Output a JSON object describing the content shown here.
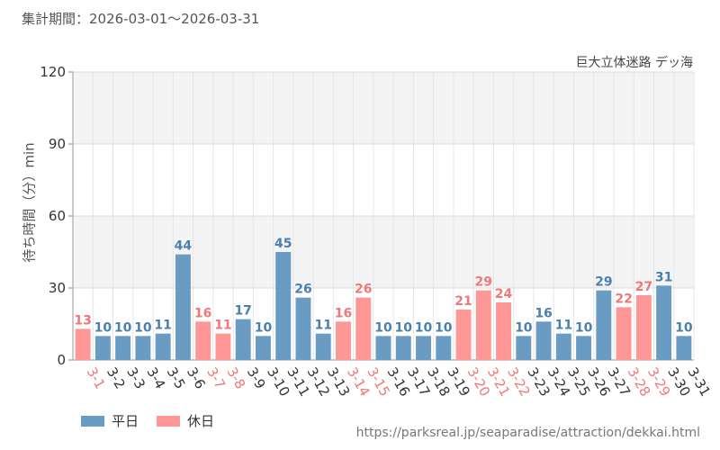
{
  "header": {
    "period_label": "集計期間：2026-03-01～2026-03-31",
    "attraction_name": "巨大立体迷路 デッ海"
  },
  "legend": {
    "weekday_label": "平日",
    "holiday_label": "休日"
  },
  "footer": {
    "source_url": "https://parksreal.jp/seaparadise/attraction/dekkai.html"
  },
  "colors": {
    "weekday": "#6a9bc3",
    "holiday": "#ff9797",
    "weekday_label": "#4a7fb0",
    "holiday_label": "#f07878"
  },
  "chart_data": {
    "type": "bar",
    "title": "",
    "xlabel": "",
    "ylabel": "待ち時間（分）min",
    "ylim": [
      0,
      120
    ],
    "yticks": [
      0,
      30,
      60,
      90,
      120
    ],
    "grid": true,
    "categories": [
      "3-1",
      "3-2",
      "3-3",
      "3-4",
      "3-5",
      "3-6",
      "3-7",
      "3-8",
      "3-9",
      "3-10",
      "3-11",
      "3-12",
      "3-13",
      "3-14",
      "3-15",
      "3-16",
      "3-17",
      "3-18",
      "3-19",
      "3-20",
      "3-21",
      "3-22",
      "3-23",
      "3-24",
      "3-25",
      "3-26",
      "3-27",
      "3-28",
      "3-29",
      "3-30",
      "3-31"
    ],
    "values": [
      13,
      10,
      10,
      10,
      11,
      44,
      16,
      11,
      17,
      10,
      45,
      26,
      11,
      16,
      26,
      10,
      10,
      10,
      10,
      21,
      29,
      24,
      10,
      16,
      11,
      10,
      29,
      22,
      27,
      31,
      10
    ],
    "day_type": [
      "holiday",
      "weekday",
      "weekday",
      "weekday",
      "weekday",
      "weekday",
      "holiday",
      "holiday",
      "weekday",
      "weekday",
      "weekday",
      "weekday",
      "weekday",
      "holiday",
      "holiday",
      "weekday",
      "weekday",
      "weekday",
      "weekday",
      "holiday",
      "holiday",
      "holiday",
      "weekday",
      "weekday",
      "weekday",
      "weekday",
      "weekday",
      "holiday",
      "holiday",
      "weekday",
      "weekday"
    ],
    "series": [
      {
        "name": "平日"
      },
      {
        "name": "休日"
      }
    ]
  }
}
